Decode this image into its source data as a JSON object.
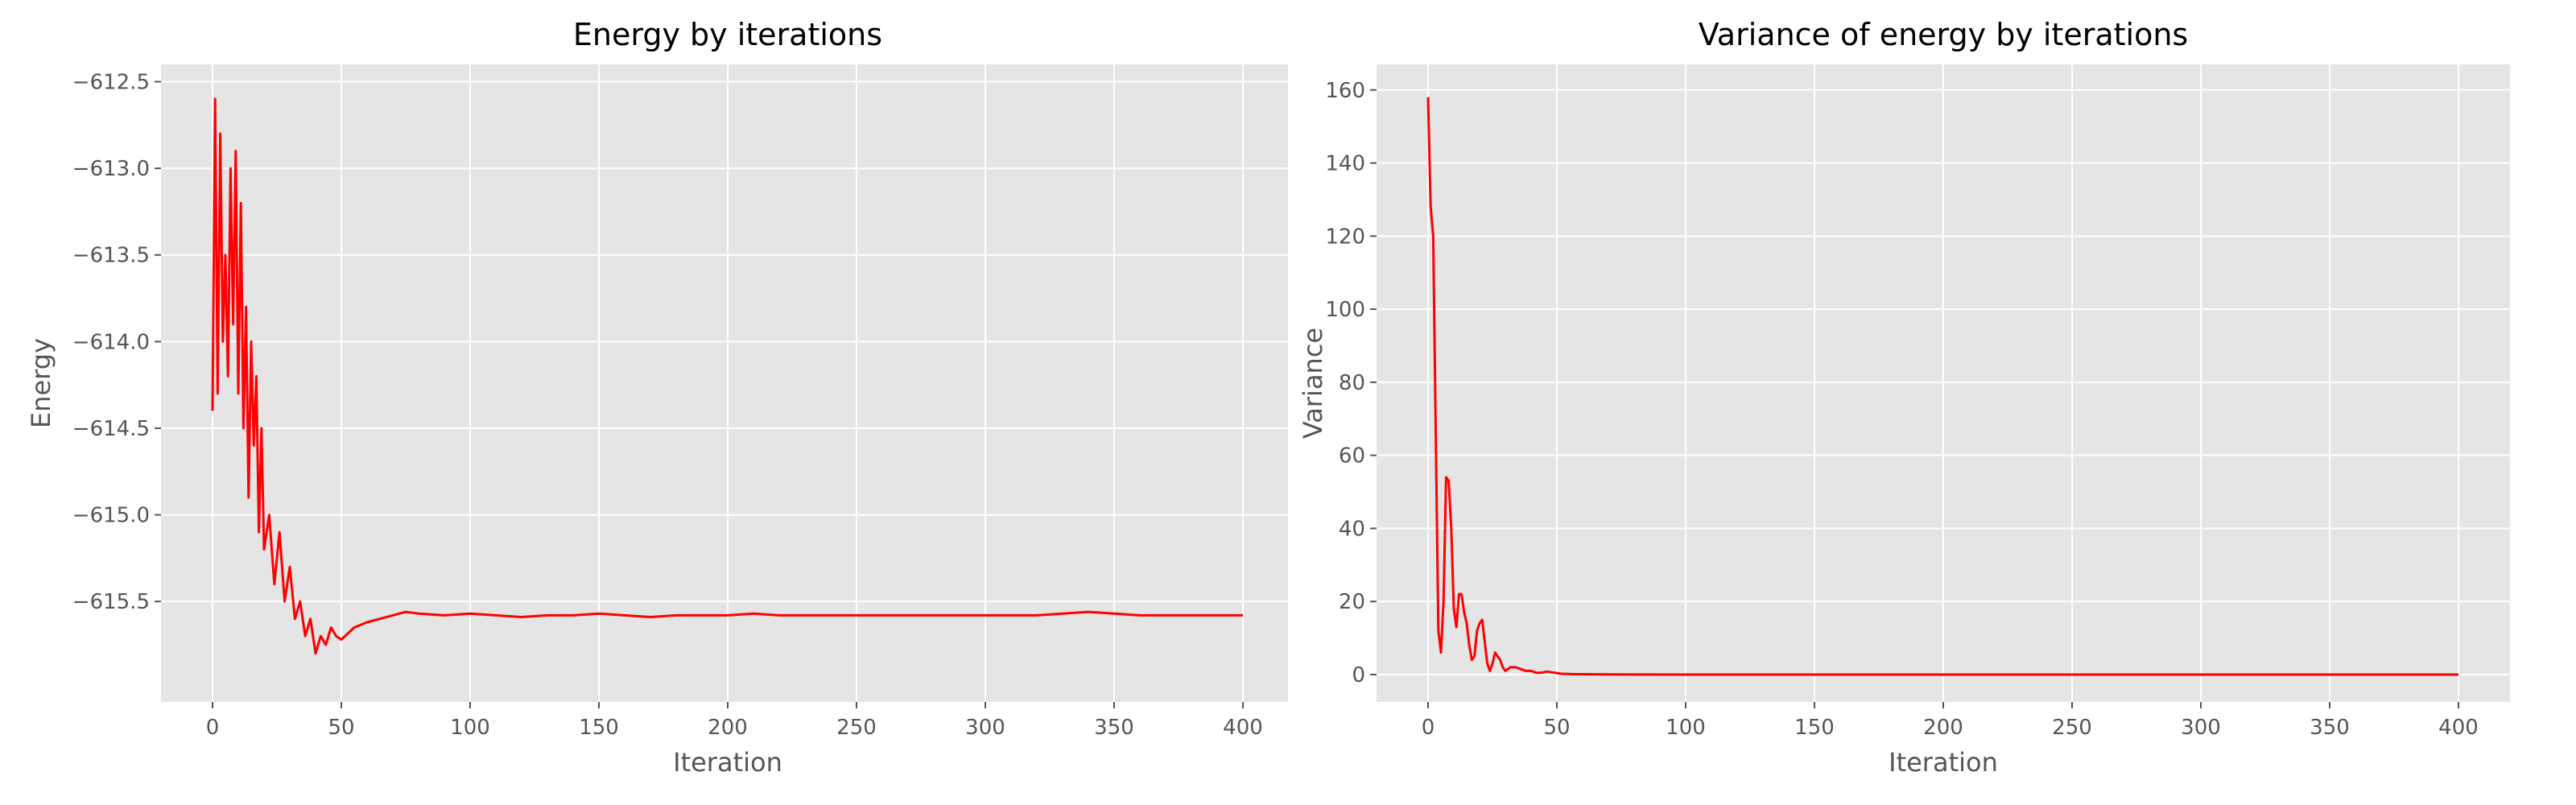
{
  "chart_data": [
    {
      "type": "line",
      "title": "Energy by iterations",
      "xlabel": "Iteration",
      "ylabel": "Energy",
      "xlim": [
        -20,
        420
      ],
      "ylim": [
        -616.08,
        -612.4
      ],
      "xticks": [
        0,
        50,
        100,
        150,
        200,
        250,
        300,
        350,
        400
      ],
      "xtick_labels": [
        "0",
        "50",
        "100",
        "150",
        "200",
        "250",
        "300",
        "350",
        "400"
      ],
      "yticks": [
        -612.5,
        -613.0,
        -613.5,
        -614.0,
        -614.5,
        -615.0,
        -615.5
      ],
      "ytick_labels": [
        "−612.5",
        "−613.0",
        "−613.5",
        "−614.0",
        "−614.5",
        "−615.0",
        "−615.5"
      ],
      "grid": true,
      "style": "ggplot",
      "line_color": "#ff0000",
      "series": [
        {
          "x": [
            0,
            1,
            2,
            3,
            4,
            5,
            6,
            7,
            8,
            9,
            10,
            11,
            12,
            13,
            14,
            15,
            16,
            17,
            18,
            19,
            20,
            22,
            24,
            26,
            28,
            30,
            32,
            34,
            36,
            38,
            40,
            42,
            44,
            46,
            48,
            50,
            55,
            60,
            65,
            70,
            75,
            80,
            90,
            100,
            110,
            120,
            130,
            140,
            150,
            160,
            170,
            180,
            190,
            200,
            210,
            220,
            230,
            240,
            250,
            260,
            270,
            280,
            290,
            300,
            310,
            320,
            330,
            340,
            350,
            360,
            370,
            380,
            390,
            400
          ],
          "y": [
            -614.4,
            -612.6,
            -614.3,
            -612.8,
            -614.0,
            -613.5,
            -614.2,
            -613.0,
            -613.9,
            -612.9,
            -614.3,
            -613.2,
            -614.5,
            -613.8,
            -614.9,
            -614.0,
            -614.6,
            -614.2,
            -615.1,
            -614.5,
            -615.2,
            -615.0,
            -615.4,
            -615.1,
            -615.5,
            -615.3,
            -615.6,
            -615.5,
            -615.7,
            -615.6,
            -615.8,
            -615.7,
            -615.75,
            -615.65,
            -615.7,
            -615.72,
            -615.65,
            -615.62,
            -615.6,
            -615.58,
            -615.56,
            -615.57,
            -615.58,
            -615.57,
            -615.58,
            -615.59,
            -615.58,
            -615.58,
            -615.57,
            -615.58,
            -615.59,
            -615.58,
            -615.58,
            -615.58,
            -615.57,
            -615.58,
            -615.58,
            -615.58,
            -615.58,
            -615.58,
            -615.58,
            -615.58,
            -615.58,
            -615.58,
            -615.58,
            -615.58,
            -615.57,
            -615.56,
            -615.57,
            -615.58,
            -615.58,
            -615.58,
            -615.58,
            -615.58
          ]
        }
      ]
    },
    {
      "type": "line",
      "title": "Variance of energy by iterations",
      "xlabel": "Iteration",
      "ylabel": "Variance",
      "xlim": [
        -20,
        420
      ],
      "ylim": [
        -7.5,
        167
      ],
      "xticks": [
        0,
        50,
        100,
        150,
        200,
        250,
        300,
        350,
        400
      ],
      "xtick_labels": [
        "0",
        "50",
        "100",
        "150",
        "200",
        "250",
        "300",
        "350",
        "400"
      ],
      "yticks": [
        0,
        20,
        40,
        60,
        80,
        100,
        120,
        140,
        160
      ],
      "ytick_labels": [
        "0",
        "20",
        "40",
        "60",
        "80",
        "100",
        "120",
        "140",
        "160"
      ],
      "grid": true,
      "style": "ggplot",
      "line_color": "#ff0000",
      "series": [
        {
          "x": [
            0,
            1,
            2,
            3,
            4,
            5,
            6,
            7,
            8,
            9,
            10,
            11,
            12,
            13,
            14,
            15,
            16,
            17,
            18,
            19,
            20,
            21,
            22,
            23,
            24,
            25,
            26,
            27,
            28,
            29,
            30,
            32,
            34,
            36,
            38,
            40,
            42,
            44,
            46,
            48,
            50,
            52,
            54,
            56,
            58,
            60,
            70,
            80,
            100,
            150,
            200,
            250,
            300,
            350,
            400
          ],
          "y": [
            158,
            128,
            120,
            65,
            12,
            6,
            20,
            54,
            53,
            40,
            18,
            13,
            22,
            22,
            17,
            14,
            8,
            4,
            5,
            12,
            14,
            15,
            9,
            3,
            1,
            3,
            6,
            5,
            4,
            2,
            1,
            2,
            2,
            1.5,
            1,
            1,
            0.5,
            0.5,
            0.8,
            0.6,
            0.4,
            0.2,
            0.2,
            0.1,
            0.1,
            0.1,
            0.05,
            0.02,
            0,
            0,
            0,
            0,
            0,
            0,
            0
          ]
        }
      ]
    }
  ]
}
